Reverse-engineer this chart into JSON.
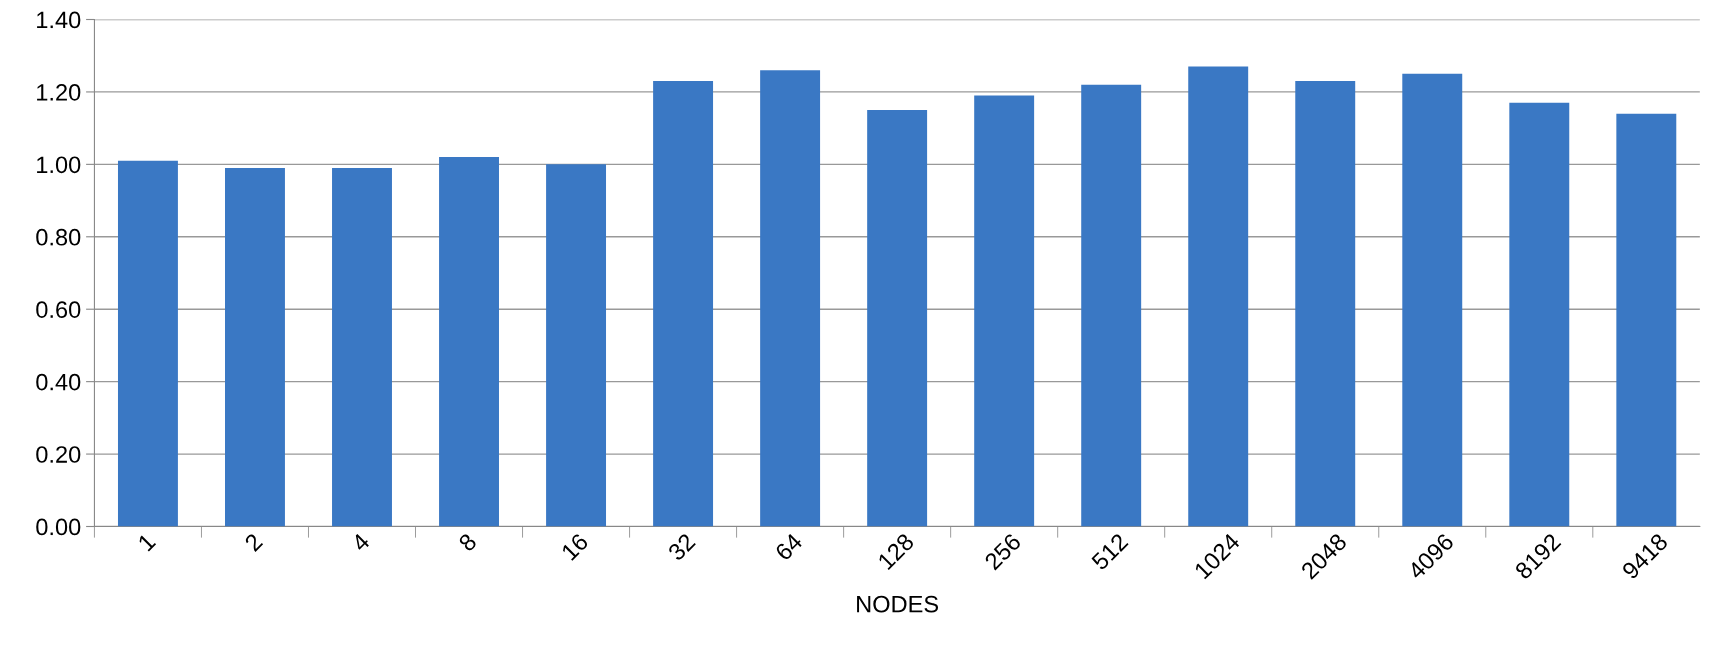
{
  "chart_data": {
    "type": "bar",
    "xlabel": "NODES",
    "categories": [
      "1",
      "2",
      "4",
      "8",
      "16",
      "32",
      "64",
      "128",
      "256",
      "512",
      "1024",
      "2048",
      "4096",
      "8192",
      "9418"
    ],
    "values": [
      1.01,
      0.99,
      0.99,
      1.02,
      1.0,
      1.23,
      1.26,
      1.15,
      1.19,
      1.22,
      1.27,
      1.23,
      1.25,
      1.17,
      1.14
    ],
    "color": "#3a78c4",
    "ylim": [
      0,
      1.4
    ],
    "yticks": [
      {
        "value": 0,
        "label": "0.00"
      },
      {
        "value": 0.2,
        "label": "0.20"
      },
      {
        "value": 0.4,
        "label": "0.40"
      },
      {
        "value": 0.6,
        "label": "0.60"
      },
      {
        "value": 0.8,
        "label": "0.80"
      },
      {
        "value": 1.0,
        "label": "1.00"
      },
      {
        "value": 1.2,
        "label": "1.20"
      },
      {
        "value": 1.4,
        "label": "1.40"
      }
    ],
    "grid": "y"
  }
}
